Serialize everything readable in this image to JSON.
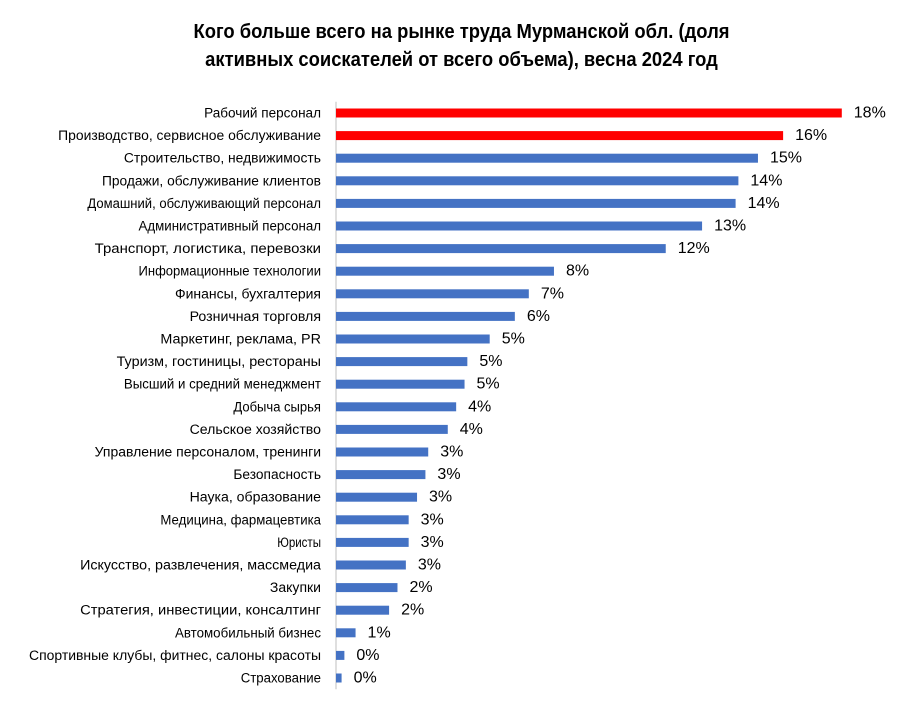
{
  "chart_data": {
    "type": "bar",
    "orientation": "horizontal",
    "title": "Кого больше всего на рынке труда Мурманской обл. (доля\nактивных соискателей от всего объема), весна 2024 год",
    "xlabel": "",
    "ylabel": "",
    "xlim": [
      0,
      18
    ],
    "grid": false,
    "legend": "none",
    "unit": "%",
    "categories": [
      "Рабочий персонал",
      "Производство, сервисное обслуживание",
      "Строительство, недвижимость",
      "Продажи, обслуживание клиентов",
      "Домашний, обслуживающий персонал",
      "Административный персонал",
      "Транспорт, логистика, перевозки",
      "Информационные технологии",
      "Финансы, бухгалтерия",
      "Розничная торговля",
      "Маркетинг, реклама, PR",
      "Туризм, гостиницы, рестораны",
      "Высший и средний менеджмент",
      "Добыча сырья",
      "Сельское хозяйство",
      "Управление персоналом, тренинги",
      "Безопасность",
      "Наука, образование",
      "Медицина, фармацевтика",
      "Юристы",
      "Искусство, развлечения, массмедиа",
      "Закупки",
      "Стратегия, инвестиции, консалтинг",
      "Автомобильный бизнес",
      "Спортивные клубы, фитнес, салоны красоты",
      "Страхование"
    ],
    "values": [
      18.1,
      16.0,
      15.1,
      14.4,
      14.3,
      13.1,
      11.8,
      7.8,
      6.9,
      6.4,
      5.5,
      4.7,
      4.6,
      4.3,
      4.0,
      3.3,
      3.2,
      2.9,
      2.6,
      2.6,
      2.5,
      2.2,
      1.9,
      0.7,
      0.3,
      0.2
    ],
    "value_labels": [
      "18%",
      "16%",
      "15%",
      "14%",
      "14%",
      "13%",
      "12%",
      "8%",
      "7%",
      "6%",
      "5%",
      "5%",
      "5%",
      "4%",
      "4%",
      "3%",
      "3%",
      "3%",
      "3%",
      "3%",
      "3%",
      "2%",
      "2%",
      "1%",
      "0%",
      "0%"
    ],
    "highlight_count": 2,
    "colors": {
      "highlight": "#ff0000",
      "default": "#4472c4",
      "axis": "#bfbfbf",
      "text": "#000000"
    }
  }
}
